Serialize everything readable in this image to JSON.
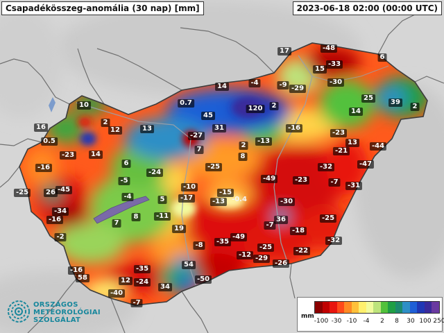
{
  "map_title": "Csapadékösszeg-anomália (30 nap) [mm]",
  "timestamp": "2023-06-18 02:00 (00:00 UTC)",
  "organization": {
    "line1": "ORSZÁGOS",
    "line2": "METEOROLÓGIAI",
    "line3": "SZOLGÁLAT",
    "logo_icon": "swirl-logo-icon",
    "color": "#18879c"
  },
  "legend": {
    "unit": "mm",
    "tick_labels": [
      "-100",
      "-30",
      "-10",
      "-4",
      "2",
      "8",
      "30",
      "100",
      "250"
    ],
    "colors": [
      "#8b0000",
      "#c00000",
      "#e8150e",
      "#ff4a1a",
      "#ff8a24",
      "#ffc03a",
      "#fff06e",
      "#f2fb9e",
      "#bde47c",
      "#52c13c",
      "#1f9f45",
      "#1c8a6e",
      "#2e8fc6",
      "#1f5fd6",
      "#2037b5",
      "#3a2a9a",
      "#6a3aa0"
    ]
  },
  "values": [
    {
      "v": "17"
    },
    {
      "v": "-48"
    },
    {
      "v": "6"
    },
    {
      "v": "-33"
    },
    {
      "v": "15"
    },
    {
      "v": "-30"
    },
    {
      "v": "25"
    },
    {
      "v": "39"
    },
    {
      "v": "2"
    },
    {
      "v": "14"
    },
    {
      "v": "-4"
    },
    {
      "v": "-9"
    },
    {
      "v": "-29"
    },
    {
      "v": "14"
    },
    {
      "v": "0.7"
    },
    {
      "v": "45"
    },
    {
      "v": "120"
    },
    {
      "v": "2"
    },
    {
      "v": "10"
    },
    {
      "v": "2"
    },
    {
      "v": "16"
    },
    {
      "v": "12"
    },
    {
      "v": "13"
    },
    {
      "v": "-27"
    },
    {
      "v": "31"
    },
    {
      "v": "-16"
    },
    {
      "v": "-23"
    },
    {
      "v": "13"
    },
    {
      "v": "-44"
    },
    {
      "v": "0.5"
    },
    {
      "v": "-23"
    },
    {
      "v": "14"
    },
    {
      "v": "6"
    },
    {
      "v": "7"
    },
    {
      "v": "2"
    },
    {
      "v": "-13"
    },
    {
      "v": "-21"
    },
    {
      "v": "8"
    },
    {
      "v": "-16"
    },
    {
      "v": "-24"
    },
    {
      "v": "-25"
    },
    {
      "v": "-32"
    },
    {
      "v": "-47"
    },
    {
      "v": "-25"
    },
    {
      "v": "26"
    },
    {
      "v": "-45"
    },
    {
      "v": "-5"
    },
    {
      "v": "-10"
    },
    {
      "v": "-49"
    },
    {
      "v": "-23"
    },
    {
      "v": "-7"
    },
    {
      "v": "-31"
    },
    {
      "v": "-4"
    },
    {
      "v": "5"
    },
    {
      "v": "-17"
    },
    {
      "v": "-15"
    },
    {
      "v": "-13"
    },
    {
      "v": "-0.4"
    },
    {
      "v": "-30"
    },
    {
      "v": "-34"
    },
    {
      "v": "-16"
    },
    {
      "v": "7"
    },
    {
      "v": "8"
    },
    {
      "v": "-11"
    },
    {
      "v": "36"
    },
    {
      "v": "-25"
    },
    {
      "v": "-7"
    },
    {
      "v": "-18"
    },
    {
      "v": "-2"
    },
    {
      "v": "19"
    },
    {
      "v": "-8"
    },
    {
      "v": "-35"
    },
    {
      "v": "-49"
    },
    {
      "v": "-25"
    },
    {
      "v": "-32"
    },
    {
      "v": "-12"
    },
    {
      "v": "-29"
    },
    {
      "v": "-22"
    },
    {
      "v": "54"
    },
    {
      "v": "-16"
    },
    {
      "v": "-35"
    },
    {
      "v": "-26"
    },
    {
      "v": "58"
    },
    {
      "v": "12"
    },
    {
      "v": "-24"
    },
    {
      "v": "-50"
    },
    {
      "v": "34"
    },
    {
      "v": "-40"
    },
    {
      "v": "-7"
    }
  ]
}
